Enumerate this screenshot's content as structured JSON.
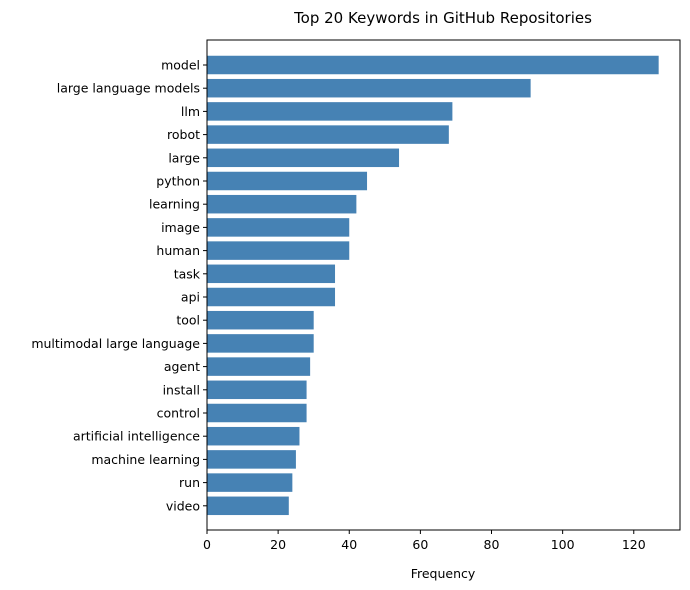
{
  "chart_data": {
    "type": "bar",
    "orientation": "horizontal",
    "title": "Top 20 Keywords in GitHub Repositories",
    "xlabel": "Frequency",
    "ylabel": "",
    "xlim": [
      0,
      133
    ],
    "xticks": [
      0,
      20,
      40,
      60,
      80,
      100,
      120
    ],
    "grid": false,
    "bar_color": "#4682b4",
    "categories": [
      "model",
      "large language models",
      "llm",
      "robot",
      "large",
      "python",
      "learning",
      "image",
      "human",
      "task",
      "api",
      "tool",
      "multimodal large language",
      "agent",
      "install",
      "control",
      "artificial intelligence",
      "machine learning",
      "run",
      "video"
    ],
    "values": [
      127,
      91,
      69,
      68,
      54,
      45,
      42,
      40,
      40,
      36,
      36,
      30,
      30,
      29,
      28,
      28,
      26,
      25,
      24,
      23
    ]
  }
}
